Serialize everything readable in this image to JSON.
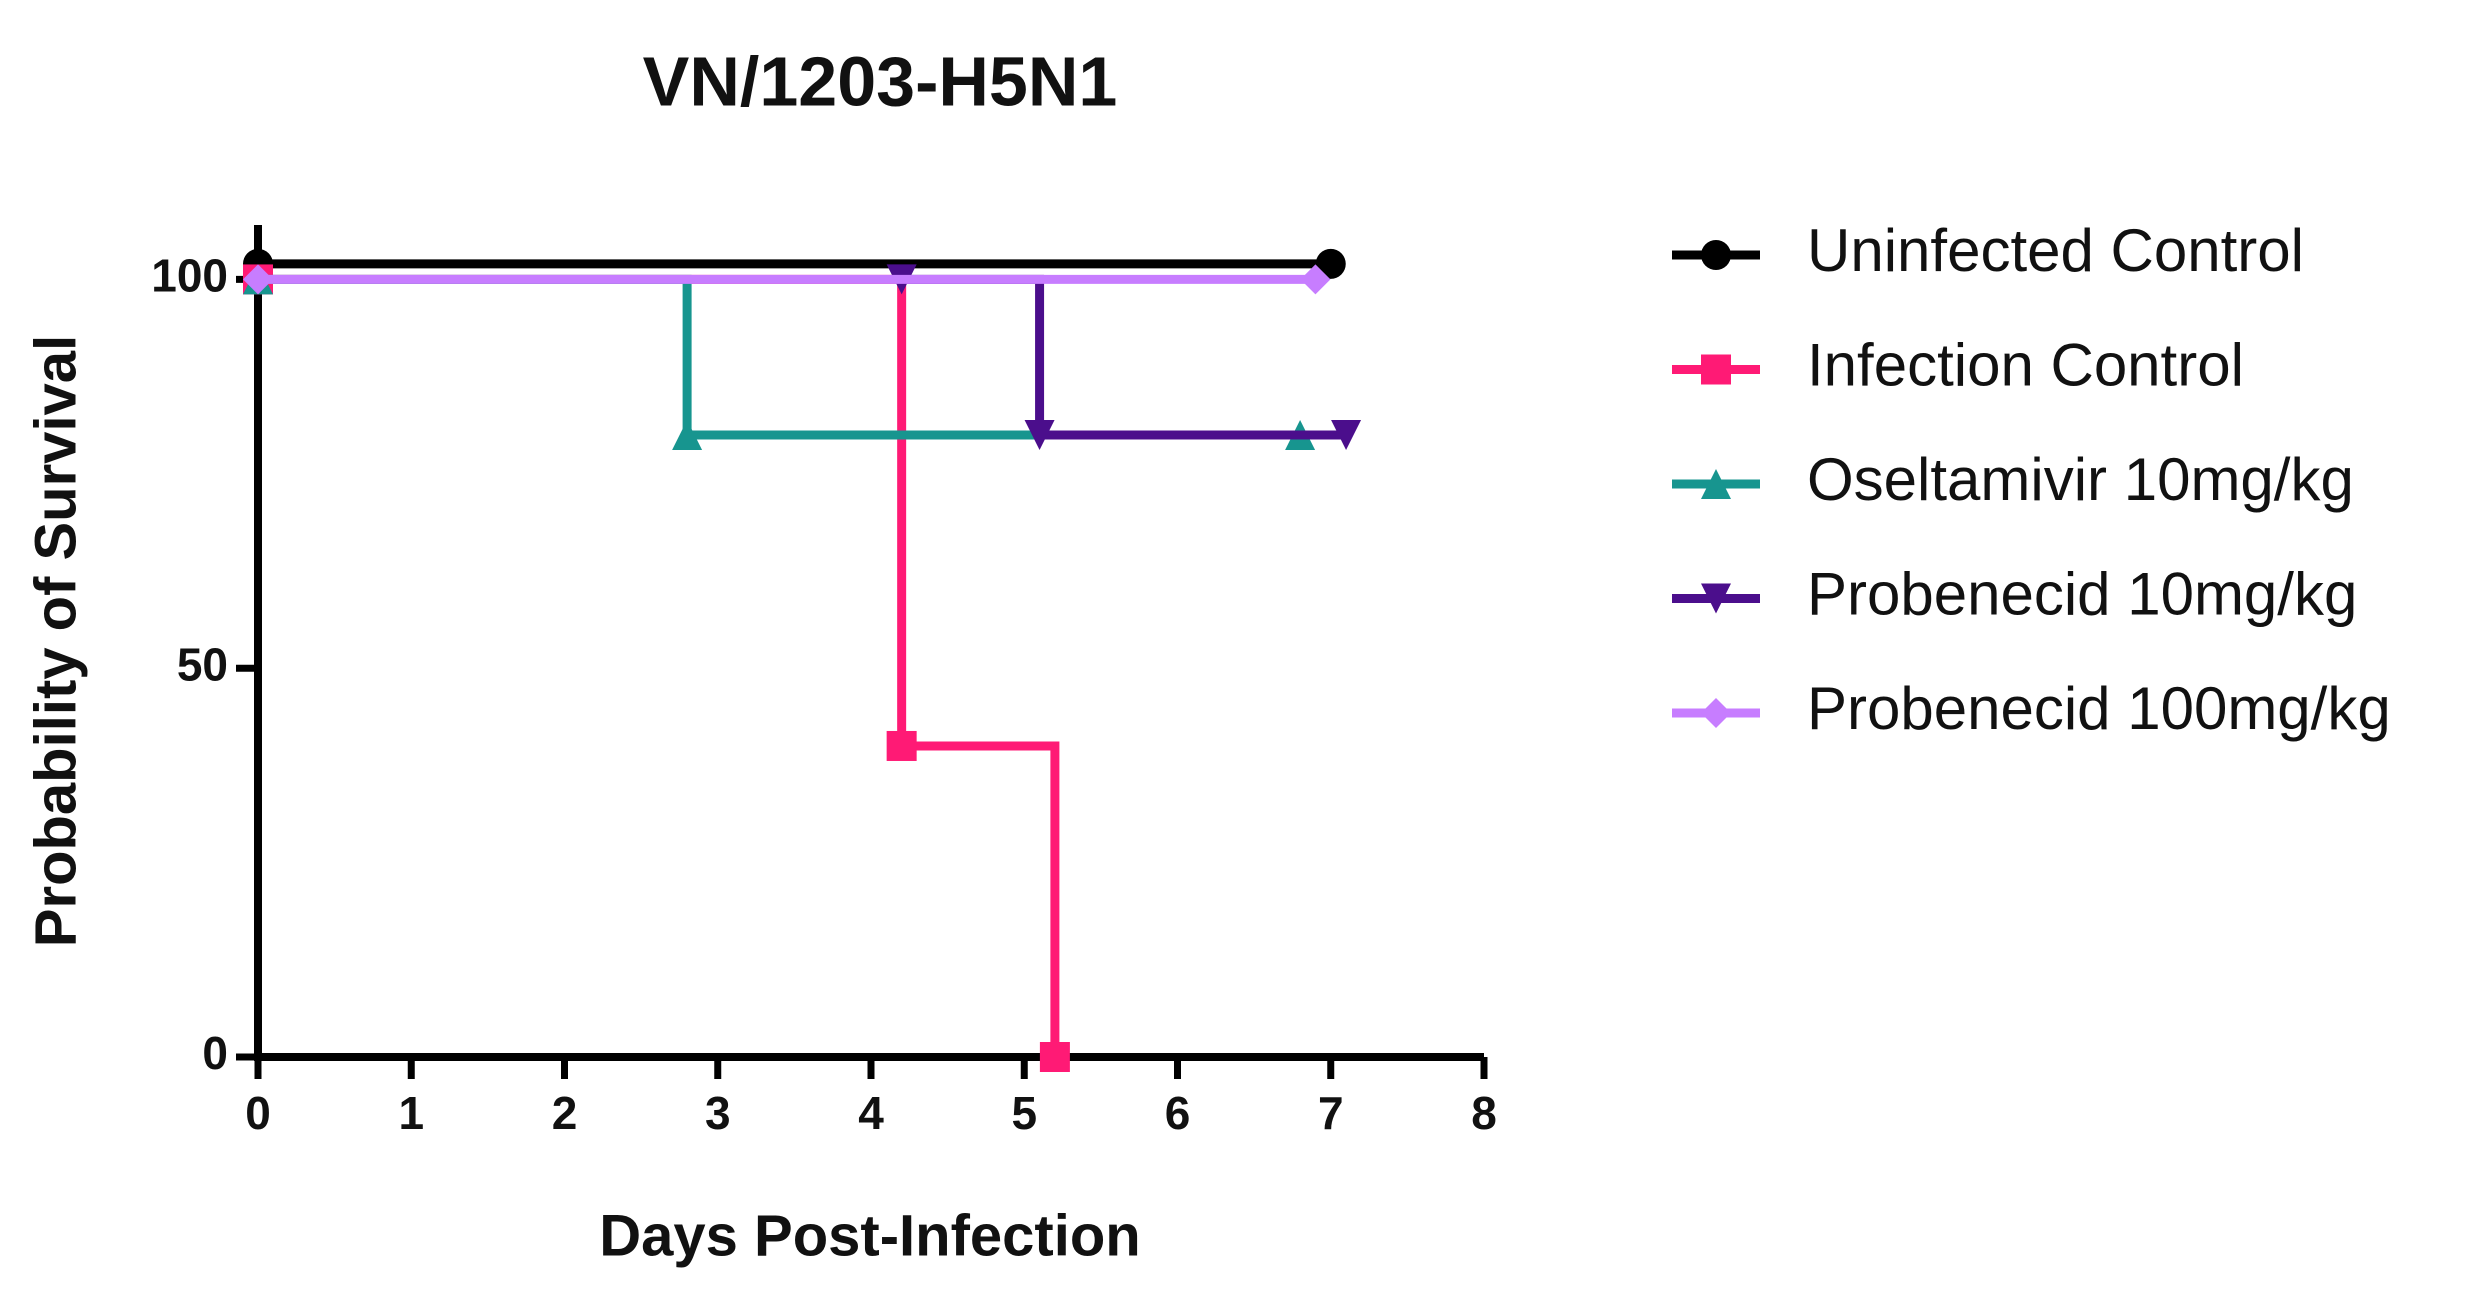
{
  "chart_data": {
    "type": "survival",
    "title": "VN/1203-H5N1",
    "xlabel": "Days Post-Infection",
    "ylabel": "Probability of Survival",
    "xlim": [
      0,
      8
    ],
    "xticks": [
      0,
      1,
      2,
      3,
      4,
      5,
      6,
      7,
      8
    ],
    "ylim": [
      0,
      107
    ],
    "yticks": [
      0,
      50,
      100
    ],
    "legend": "right",
    "series": [
      {
        "name": "Uninfected Control",
        "color": "#000000",
        "marker": "circle",
        "x": [
          0,
          7
        ],
        "values": [
          102,
          102
        ]
      },
      {
        "name": "Infection Control",
        "color": "#ff1a75",
        "marker": "square",
        "x": [
          0,
          4.2,
          5.2
        ],
        "values": [
          100,
          40,
          0
        ]
      },
      {
        "name": "Oseltamivir 10mg/kg",
        "color": "#17958f",
        "marker": "triangle",
        "x": [
          0,
          2.8,
          6.8
        ],
        "values": [
          100,
          80,
          80
        ]
      },
      {
        "name": "Probenecid 10mg/kg",
        "color": "#4b0e8c",
        "marker": "triangle-down",
        "x": [
          4.2,
          5.1,
          7.1
        ],
        "values": [
          100,
          80,
          80
        ]
      },
      {
        "name": "Probenecid 100mg/kg",
        "color": "#c77dff",
        "marker": "diamond",
        "x": [
          0,
          6.9
        ],
        "values": [
          100,
          100
        ]
      }
    ]
  }
}
